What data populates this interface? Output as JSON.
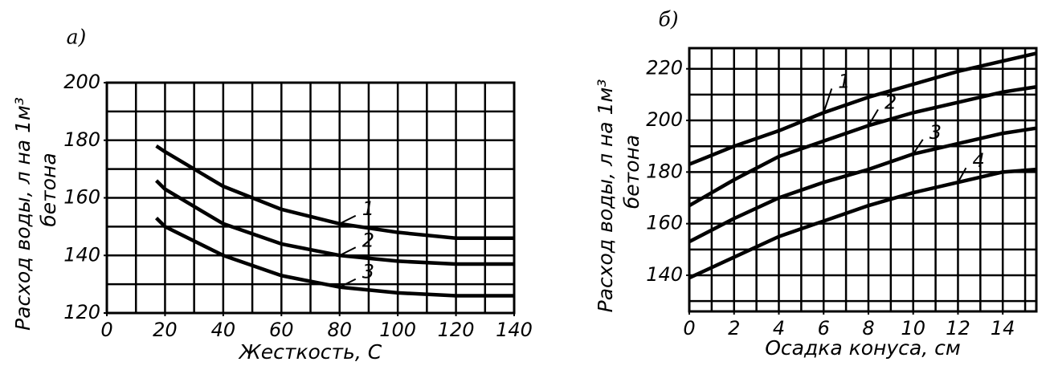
{
  "chart_data": [
    {
      "type": "line",
      "panel": "а)",
      "x": [
        17,
        20,
        40,
        60,
        80,
        100,
        120,
        140
      ],
      "series": [
        {
          "name": "1",
          "color": "#000000",
          "values": [
            178,
            176,
            164,
            156,
            151,
            148,
            146,
            146
          ]
        },
        {
          "name": "2",
          "color": "#000000",
          "values": [
            166,
            163,
            151,
            144,
            140,
            138,
            137,
            137
          ]
        },
        {
          "name": "3",
          "color": "#000000",
          "values": [
            153,
            150,
            140,
            133,
            129,
            127,
            126,
            126
          ]
        }
      ],
      "xlabel": "Жесткость, С",
      "ylabel": [
        "Расход воды, л на 1м³",
        "бетона"
      ],
      "xlim": [
        0,
        140
      ],
      "ylim": [
        120,
        200
      ],
      "xticks": [
        0,
        20,
        40,
        60,
        80,
        100,
        120,
        140
      ],
      "yticks": [
        120,
        140,
        160,
        180,
        200
      ],
      "xgrid": [
        0,
        10,
        20,
        30,
        40,
        50,
        60,
        70,
        80,
        90,
        100,
        110,
        120,
        130,
        140
      ],
      "ygrid": [
        120,
        130,
        140,
        150,
        160,
        170,
        180,
        190,
        200
      ],
      "grid": true
    },
    {
      "type": "line",
      "panel": "б)",
      "x": [
        0,
        2,
        4,
        6,
        8,
        10,
        12,
        14,
        15.5
      ],
      "series": [
        {
          "name": "1",
          "color": "#000000",
          "values": [
            183,
            190,
            196,
            203,
            209,
            214,
            219,
            223,
            226
          ]
        },
        {
          "name": "2",
          "color": "#000000",
          "values": [
            167,
            177,
            186,
            192,
            198,
            203,
            207,
            211,
            213
          ]
        },
        {
          "name": "3",
          "color": "#000000",
          "values": [
            153,
            162,
            170,
            176,
            181,
            187,
            191,
            195,
            197
          ]
        },
        {
          "name": "4",
          "color": "#000000",
          "values": [
            139,
            147,
            155,
            161,
            167,
            172,
            176,
            180,
            181
          ]
        }
      ],
      "xlabel": "Осадка конуса, см",
      "ylabel": [
        "Расход воды, л на 1м³",
        "бетона"
      ],
      "xlim": [
        0,
        15.5
      ],
      "ylim": [
        126,
        228
      ],
      "xticks": [
        0,
        2,
        4,
        6,
        8,
        10,
        12,
        14
      ],
      "yticks": [
        140,
        160,
        180,
        200,
        220
      ],
      "xgrid": [
        0,
        1,
        2,
        3,
        4,
        5,
        6,
        7,
        8,
        9,
        10,
        11,
        12,
        13,
        14,
        15
      ],
      "ygrid": [
        130,
        140,
        150,
        160,
        170,
        180,
        190,
        200,
        210,
        220
      ],
      "grid": true
    }
  ]
}
